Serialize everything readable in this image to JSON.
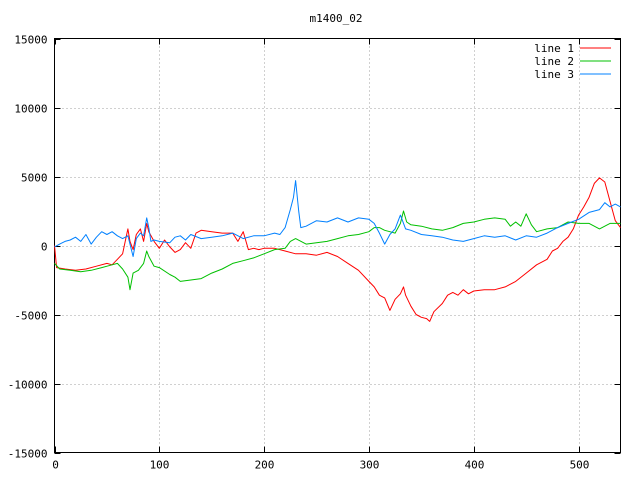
{
  "chart_data": {
    "type": "line",
    "title": "m1400_02",
    "xlabel": "",
    "ylabel": "",
    "xlim": [
      0,
      540
    ],
    "ylim": [
      -15000,
      15000
    ],
    "x_ticks": [
      0,
      100,
      200,
      300,
      400,
      500
    ],
    "y_ticks": [
      -15000,
      -10000,
      -5000,
      0,
      5000,
      10000,
      15000
    ],
    "grid": true,
    "legend_position": "top-right",
    "series": [
      {
        "name": "line 1",
        "color": "#ff0000",
        "points": [
          [
            0,
            0
          ],
          [
            2,
            -1600
          ],
          [
            10,
            -1700
          ],
          [
            20,
            -1800
          ],
          [
            30,
            -1700
          ],
          [
            40,
            -1500
          ],
          [
            50,
            -1300
          ],
          [
            55,
            -1400
          ],
          [
            60,
            -1000
          ],
          [
            65,
            -600
          ],
          [
            68,
            500
          ],
          [
            70,
            1200
          ],
          [
            72,
            300
          ],
          [
            75,
            -300
          ],
          [
            78,
            800
          ],
          [
            82,
            1200
          ],
          [
            85,
            300
          ],
          [
            88,
            1600
          ],
          [
            90,
            1000
          ],
          [
            95,
            300
          ],
          [
            100,
            -200
          ],
          [
            105,
            400
          ],
          [
            110,
            -100
          ],
          [
            115,
            -500
          ],
          [
            120,
            -300
          ],
          [
            125,
            200
          ],
          [
            130,
            -200
          ],
          [
            135,
            900
          ],
          [
            140,
            1100
          ],
          [
            150,
            1000
          ],
          [
            160,
            900
          ],
          [
            170,
            900
          ],
          [
            175,
            300
          ],
          [
            180,
            1000
          ],
          [
            185,
            -300
          ],
          [
            190,
            -200
          ],
          [
            195,
            -300
          ],
          [
            200,
            -200
          ],
          [
            210,
            -200
          ],
          [
            220,
            -400
          ],
          [
            230,
            -600
          ],
          [
            240,
            -600
          ],
          [
            250,
            -700
          ],
          [
            260,
            -500
          ],
          [
            270,
            -800
          ],
          [
            280,
            -1300
          ],
          [
            290,
            -1800
          ],
          [
            300,
            -2600
          ],
          [
            305,
            -3000
          ],
          [
            310,
            -3600
          ],
          [
            315,
            -3800
          ],
          [
            320,
            -4700
          ],
          [
            325,
            -3900
          ],
          [
            330,
            -3500
          ],
          [
            333,
            -3000
          ],
          [
            335,
            -3600
          ],
          [
            340,
            -4400
          ],
          [
            345,
            -5000
          ],
          [
            350,
            -5200
          ],
          [
            355,
            -5300
          ],
          [
            358,
            -5500
          ],
          [
            362,
            -4800
          ],
          [
            370,
            -4200
          ],
          [
            375,
            -3600
          ],
          [
            380,
            -3400
          ],
          [
            385,
            -3600
          ],
          [
            390,
            -3200
          ],
          [
            395,
            -3500
          ],
          [
            400,
            -3300
          ],
          [
            410,
            -3200
          ],
          [
            420,
            -3200
          ],
          [
            430,
            -3000
          ],
          [
            440,
            -2600
          ],
          [
            450,
            -2000
          ],
          [
            460,
            -1400
          ],
          [
            470,
            -1000
          ],
          [
            475,
            -400
          ],
          [
            480,
            -200
          ],
          [
            485,
            300
          ],
          [
            490,
            600
          ],
          [
            495,
            1200
          ],
          [
            500,
            2200
          ],
          [
            505,
            2800
          ],
          [
            510,
            3500
          ],
          [
            515,
            4500
          ],
          [
            520,
            4900
          ],
          [
            525,
            4600
          ],
          [
            530,
            3200
          ],
          [
            535,
            1800
          ],
          [
            540,
            1300
          ]
        ]
      },
      {
        "name": "line 2",
        "color": "#00c000",
        "points": [
          [
            0,
            -1300
          ],
          [
            5,
            -1700
          ],
          [
            15,
            -1800
          ],
          [
            25,
            -1900
          ],
          [
            35,
            -1800
          ],
          [
            45,
            -1600
          ],
          [
            55,
            -1400
          ],
          [
            60,
            -1300
          ],
          [
            65,
            -1700
          ],
          [
            70,
            -2300
          ],
          [
            72,
            -3200
          ],
          [
            75,
            -2000
          ],
          [
            80,
            -1800
          ],
          [
            85,
            -1300
          ],
          [
            88,
            -400
          ],
          [
            90,
            -800
          ],
          [
            95,
            -1500
          ],
          [
            100,
            -1600
          ],
          [
            110,
            -2100
          ],
          [
            115,
            -2300
          ],
          [
            120,
            -2600
          ],
          [
            130,
            -2500
          ],
          [
            140,
            -2400
          ],
          [
            150,
            -2000
          ],
          [
            160,
            -1700
          ],
          [
            170,
            -1300
          ],
          [
            180,
            -1100
          ],
          [
            190,
            -900
          ],
          [
            200,
            -600
          ],
          [
            210,
            -300
          ],
          [
            220,
            -200
          ],
          [
            225,
            300
          ],
          [
            230,
            500
          ],
          [
            240,
            100
          ],
          [
            250,
            200
          ],
          [
            260,
            300
          ],
          [
            270,
            500
          ],
          [
            280,
            700
          ],
          [
            290,
            800
          ],
          [
            300,
            1000
          ],
          [
            305,
            1300
          ],
          [
            310,
            1300
          ],
          [
            315,
            1100
          ],
          [
            320,
            1000
          ],
          [
            325,
            900
          ],
          [
            330,
            1600
          ],
          [
            333,
            2500
          ],
          [
            336,
            1700
          ],
          [
            340,
            1500
          ],
          [
            350,
            1400
          ],
          [
            360,
            1200
          ],
          [
            370,
            1100
          ],
          [
            380,
            1300
          ],
          [
            390,
            1600
          ],
          [
            400,
            1700
          ],
          [
            410,
            1900
          ],
          [
            420,
            2000
          ],
          [
            430,
            1900
          ],
          [
            435,
            1400
          ],
          [
            440,
            1700
          ],
          [
            445,
            1400
          ],
          [
            450,
            2300
          ],
          [
            455,
            1500
          ],
          [
            460,
            1000
          ],
          [
            470,
            1200
          ],
          [
            480,
            1300
          ],
          [
            490,
            1700
          ],
          [
            500,
            1600
          ],
          [
            510,
            1600
          ],
          [
            520,
            1200
          ],
          [
            530,
            1600
          ],
          [
            540,
            1600
          ]
        ]
      },
      {
        "name": "line 3",
        "color": "#0080ff",
        "points": [
          [
            0,
            -100
          ],
          [
            5,
            100
          ],
          [
            10,
            300
          ],
          [
            15,
            400
          ],
          [
            20,
            600
          ],
          [
            25,
            300
          ],
          [
            30,
            800
          ],
          [
            35,
            100
          ],
          [
            40,
            600
          ],
          [
            45,
            1000
          ],
          [
            50,
            800
          ],
          [
            55,
            1000
          ],
          [
            60,
            700
          ],
          [
            65,
            500
          ],
          [
            70,
            700
          ],
          [
            75,
            -800
          ],
          [
            78,
            500
          ],
          [
            82,
            900
          ],
          [
            85,
            700
          ],
          [
            88,
            2000
          ],
          [
            90,
            1300
          ],
          [
            92,
            300
          ],
          [
            95,
            400
          ],
          [
            100,
            300
          ],
          [
            110,
            200
          ],
          [
            115,
            600
          ],
          [
            120,
            700
          ],
          [
            125,
            400
          ],
          [
            130,
            800
          ],
          [
            140,
            500
          ],
          [
            150,
            600
          ],
          [
            160,
            700
          ],
          [
            170,
            900
          ],
          [
            180,
            500
          ],
          [
            190,
            700
          ],
          [
            200,
            700
          ],
          [
            210,
            900
          ],
          [
            215,
            800
          ],
          [
            220,
            1300
          ],
          [
            225,
            2600
          ],
          [
            228,
            3500
          ],
          [
            230,
            4700
          ],
          [
            233,
            2500
          ],
          [
            235,
            1300
          ],
          [
            240,
            1400
          ],
          [
            250,
            1800
          ],
          [
            260,
            1700
          ],
          [
            270,
            2000
          ],
          [
            280,
            1700
          ],
          [
            290,
            2000
          ],
          [
            300,
            1900
          ],
          [
            305,
            1600
          ],
          [
            310,
            900
          ],
          [
            315,
            100
          ],
          [
            320,
            800
          ],
          [
            325,
            1200
          ],
          [
            330,
            2200
          ],
          [
            335,
            1200
          ],
          [
            340,
            1100
          ],
          [
            350,
            800
          ],
          [
            360,
            700
          ],
          [
            370,
            600
          ],
          [
            380,
            400
          ],
          [
            390,
            300
          ],
          [
            400,
            500
          ],
          [
            410,
            700
          ],
          [
            420,
            600
          ],
          [
            430,
            700
          ],
          [
            440,
            400
          ],
          [
            450,
            700
          ],
          [
            460,
            600
          ],
          [
            470,
            900
          ],
          [
            480,
            1300
          ],
          [
            490,
            1600
          ],
          [
            500,
            1900
          ],
          [
            510,
            2400
          ],
          [
            520,
            2600
          ],
          [
            525,
            3100
          ],
          [
            530,
            2800
          ],
          [
            535,
            3000
          ],
          [
            540,
            2800
          ]
        ]
      }
    ]
  }
}
